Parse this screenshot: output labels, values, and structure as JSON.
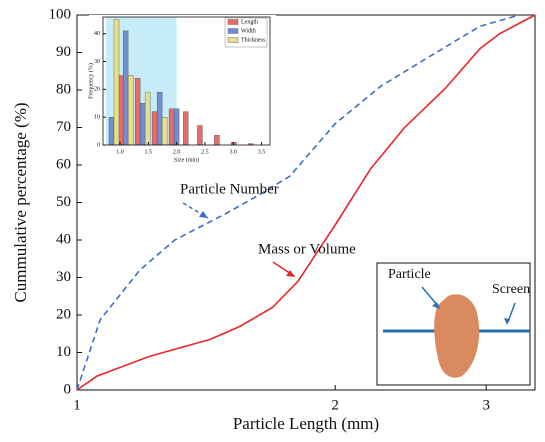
{
  "chart_data": [
    {
      "type": "line",
      "xlabel": "Particle Length (mm)",
      "ylabel": "Cummulative percentage (%)",
      "xscale": "log",
      "xlim": [
        1,
        3.42
      ],
      "ylim": [
        0,
        100
      ],
      "xticks": [
        1,
        2,
        3
      ],
      "yticks": [
        0,
        10,
        20,
        30,
        40,
        50,
        60,
        70,
        80,
        90,
        100
      ],
      "series": [
        {
          "name": "Particle Number",
          "color": "#3a6fc4",
          "dash": true,
          "x": [
            1,
            1.064,
            1.184,
            1.3,
            1.49,
            1.63,
            1.77,
            2.0,
            2.26,
            2.58,
            2.95,
            3.28
          ],
          "values": [
            0,
            18.7,
            32,
            40,
            47,
            52,
            57,
            71,
            81,
            89,
            97,
            100
          ]
        },
        {
          "name": "Mass or Volume",
          "color": "#e8262a",
          "dash": false,
          "x": [
            1,
            1.055,
            1.216,
            1.43,
            1.55,
            1.69,
            1.81,
            2.0,
            2.2,
            2.41,
            2.69,
            2.95,
            3.11,
            3.42
          ],
          "values": [
            0,
            3.7,
            9,
            13.5,
            17,
            22,
            29,
            44,
            59,
            70,
            80.5,
            91,
            95,
            100
          ]
        }
      ]
    },
    {
      "type": "bar",
      "xlabel": "Size (mm)",
      "ylabel": "Frequency (%)",
      "xlim": [
        0.7,
        3.65
      ],
      "ylim": [
        0,
        46
      ],
      "shaded_range": [
        0.75,
        2.0
      ],
      "shaded_color": "#c6ecf8",
      "xticks": [
        {
          "value": 1,
          "label": "1.0"
        },
        1.5,
        {
          "value": 2,
          "label": "2.0"
        },
        2.5,
        {
          "value": 3,
          "label": "3.0"
        },
        3.5
      ],
      "yticks": [
        0,
        10,
        20,
        30,
        40
      ],
      "x": [
        0.85,
        1.1,
        1.4,
        1.7,
        2.0,
        2.25,
        2.5,
        2.8,
        3.1,
        3.4
      ],
      "series": [
        {
          "name": "Length",
          "color": "#e86a6a",
          "values": [
            null,
            25,
            24,
            12,
            13,
            12,
            7,
            3.5,
            1,
            0.5
          ]
        },
        {
          "name": "Width",
          "color": "#6f8fd2",
          "values": [
            10,
            41,
            15,
            19,
            13,
            null,
            null,
            null,
            null,
            null
          ]
        },
        {
          "name": "Thickness",
          "color": "#e6df8c",
          "values": [
            45,
            25,
            19,
            10,
            null,
            null,
            null,
            null,
            null,
            null
          ]
        }
      ]
    }
  ],
  "annotations": [
    "Particle Number",
    "Mass or Volume"
  ],
  "diagram": {
    "labels": [
      "Particle",
      "Screen"
    ]
  }
}
